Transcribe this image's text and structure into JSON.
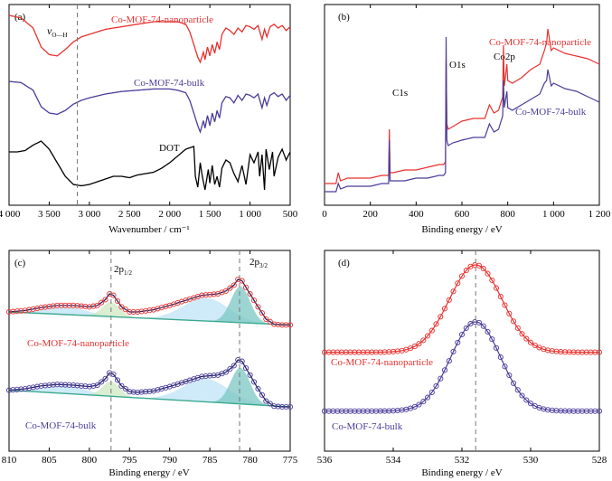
{
  "colors": {
    "nano": "#e8312f",
    "bulk": "#4a3c9a",
    "dot": "#000000",
    "fill_blue": "#bfe3f5",
    "fill_green": "#cfe8c2",
    "fill_teal": "#7cc7c3",
    "guide": "#777777"
  },
  "chart_data": [
    {
      "id": "a",
      "type": "line",
      "panel_label": "(a)",
      "xlabel": "Wavenumber / cm⁻¹",
      "x_ticks": [
        "4 000",
        "3 500",
        "3 000",
        "2 500",
        "2 000",
        "1 500",
        "1 000",
        "500"
      ],
      "xlim": [
        4000,
        500
      ],
      "series": [
        {
          "name": "Co-MOF-74-nanoparticle",
          "x": [
            4000,
            3850,
            3700,
            3600,
            3500,
            3400,
            3300,
            3200,
            3100,
            3000,
            2800,
            2600,
            2400,
            2200,
            2000,
            1900,
            1800,
            1750,
            1700,
            1650,
            1620,
            1580,
            1560,
            1530,
            1500,
            1470,
            1440,
            1410,
            1380,
            1350,
            1300,
            1250,
            1200,
            1150,
            1100,
            1050,
            1000,
            950,
            900,
            850,
            820,
            790,
            750,
            700,
            650,
            600,
            550,
            500
          ],
          "y": [
            95,
            93,
            85,
            70,
            64,
            63,
            68,
            74,
            78,
            80,
            84,
            86,
            88,
            90,
            90,
            90,
            88,
            82,
            72,
            62,
            58,
            66,
            60,
            70,
            63,
            72,
            65,
            74,
            68,
            80,
            85,
            83,
            80,
            85,
            82,
            87,
            86,
            84,
            87,
            76,
            84,
            78,
            86,
            88,
            85,
            87,
            83,
            86
          ]
        },
        {
          "name": "Co-MOF-74-bulk",
          "x": [
            4000,
            3850,
            3700,
            3600,
            3500,
            3400,
            3300,
            3200,
            3100,
            3000,
            2800,
            2600,
            2400,
            2200,
            2000,
            1900,
            1800,
            1750,
            1700,
            1650,
            1620,
            1580,
            1560,
            1530,
            1500,
            1470,
            1440,
            1410,
            1380,
            1350,
            1300,
            1250,
            1200,
            1150,
            1100,
            1050,
            1000,
            950,
            900,
            850,
            820,
            790,
            750,
            700,
            650,
            600,
            550,
            500
          ],
          "y": [
            95,
            94,
            88,
            75,
            70,
            69,
            72,
            77,
            80,
            82,
            85,
            87,
            88,
            89,
            89,
            88,
            86,
            80,
            70,
            60,
            55,
            64,
            58,
            68,
            60,
            70,
            63,
            72,
            66,
            78,
            83,
            82,
            78,
            84,
            80,
            85,
            84,
            82,
            85,
            74,
            82,
            76,
            84,
            86,
            83,
            85,
            80,
            84
          ]
        },
        {
          "name": "DOT",
          "x": [
            4000,
            3900,
            3800,
            3700,
            3600,
            3500,
            3400,
            3300,
            3200,
            3100,
            3000,
            2900,
            2800,
            2700,
            2600,
            2500,
            2400,
            2300,
            2200,
            2100,
            2000,
            1900,
            1800,
            1700,
            1680,
            1650,
            1620,
            1600,
            1560,
            1520,
            1500,
            1470,
            1440,
            1410,
            1380,
            1350,
            1300,
            1250,
            1200,
            1150,
            1100,
            1050,
            1000,
            950,
            900,
            880,
            850,
            820,
            800,
            760,
            720,
            700,
            650,
            600,
            550,
            500
          ],
          "y": [
            88,
            88,
            89,
            93,
            96,
            90,
            80,
            70,
            64,
            63,
            64,
            66,
            68,
            70,
            70,
            69,
            71,
            72,
            73,
            76,
            80,
            85,
            90,
            92,
            70,
            62,
            80,
            72,
            60,
            75,
            65,
            78,
            64,
            70,
            62,
            76,
            82,
            80,
            72,
            66,
            78,
            64,
            86,
            80,
            88,
            70,
            86,
            60,
            90,
            75,
            88,
            70,
            84,
            90,
            82,
            88
          ]
        }
      ],
      "annotations": [
        "ν",
        "O—H",
        "Co-MOF-74-nanoparticle",
        "Co-MOF-74-bulk",
        "DOT"
      ]
    },
    {
      "id": "b",
      "type": "line",
      "panel_label": "(b)",
      "xlabel": "Binding energy / eV",
      "x_ticks": [
        "0",
        "200",
        "400",
        "600",
        "800",
        "1 000",
        "1 200"
      ],
      "xlim": [
        0,
        1200
      ],
      "series": [
        {
          "name": "Co-MOF-74-nanoparticle",
          "x": [
            0,
            50,
            60,
            70,
            100,
            150,
            200,
            250,
            280,
            283,
            286,
            290,
            300,
            350,
            400,
            450,
            500,
            520,
            528,
            531,
            534,
            540,
            560,
            600,
            650,
            700,
            720,
            740,
            760,
            778,
            781,
            785,
            796,
            800,
            820,
            860,
            900,
            940,
            960,
            970,
            975,
            990,
            1000,
            1050,
            1100,
            1150,
            1200
          ],
          "y": [
            8,
            8,
            12,
            9,
            10,
            10,
            10,
            11,
            11,
            28,
            12,
            12,
            12,
            13,
            13,
            14,
            15,
            15,
            16,
            54,
            30,
            28,
            29,
            31,
            32,
            32,
            37,
            34,
            35,
            40,
            59,
            44,
            52,
            46,
            45,
            47,
            50,
            52,
            57,
            60,
            65,
            57,
            58,
            56,
            55,
            54,
            52
          ]
        },
        {
          "name": "Co-MOF-74-bulk",
          "x": [
            0,
            50,
            60,
            70,
            100,
            150,
            200,
            250,
            280,
            283,
            286,
            290,
            300,
            350,
            400,
            450,
            500,
            520,
            528,
            531,
            534,
            540,
            560,
            600,
            650,
            700,
            720,
            740,
            760,
            778,
            781,
            785,
            796,
            800,
            820,
            860,
            900,
            940,
            960,
            970,
            975,
            990,
            1000,
            1050,
            1100,
            1150,
            1200
          ],
          "y": [
            5,
            5,
            8,
            6,
            7,
            7,
            7,
            8,
            8,
            24,
            9,
            9,
            9,
            9,
            10,
            10,
            11,
            11,
            12,
            62,
            24,
            22,
            23,
            24,
            25,
            25,
            30,
            27,
            28,
            33,
            46,
            36,
            42,
            36,
            35,
            37,
            39,
            41,
            45,
            46,
            50,
            44,
            45,
            43,
            42,
            40,
            38
          ]
        }
      ],
      "annotations": [
        "C1s",
        "O1s",
        "Co2p",
        "Co-MOF-74-nanoparticle",
        "Co-MOF-74-bulk"
      ]
    },
    {
      "id": "c",
      "type": "line",
      "panel_label": "(c)",
      "xlabel": "Binding energy / eV",
      "x_ticks": [
        "810",
        "805",
        "800",
        "795",
        "790",
        "785",
        "780",
        "775"
      ],
      "xlim": [
        810,
        775
      ],
      "series": [
        {
          "name": "Co-MOF-74-nanoparticle",
          "x": [
            810,
            808,
            806,
            804,
            802,
            800,
            799,
            798,
            797.5,
            797,
            796,
            795,
            794,
            792,
            790,
            788,
            786,
            784,
            783,
            782,
            781.5,
            781,
            780,
            779,
            778,
            777,
            776,
            775
          ],
          "y": [
            0.55,
            0.57,
            0.61,
            0.64,
            0.64,
            0.62,
            0.64,
            0.72,
            0.8,
            0.78,
            0.62,
            0.55,
            0.55,
            0.58,
            0.64,
            0.71,
            0.78,
            0.8,
            0.84,
            0.92,
            1.0,
            0.98,
            0.8,
            0.62,
            0.45,
            0.38,
            0.37,
            0.37
          ]
        },
        {
          "name": "Co-MOF-74-bulk",
          "x": [
            810,
            808,
            806,
            804,
            802,
            800,
            799,
            798,
            797.5,
            797,
            796,
            795,
            794,
            792,
            790,
            788,
            786,
            784,
            783,
            782,
            781.5,
            781,
            780,
            779,
            778,
            777,
            776,
            775
          ],
          "y": [
            0.58,
            0.6,
            0.64,
            0.66,
            0.65,
            0.63,
            0.65,
            0.74,
            0.82,
            0.8,
            0.64,
            0.56,
            0.55,
            0.57,
            0.63,
            0.7,
            0.77,
            0.79,
            0.83,
            0.92,
            1.0,
            0.98,
            0.79,
            0.6,
            0.43,
            0.36,
            0.35,
            0.35
          ]
        }
      ],
      "annotations": [
        "2p",
        "1/2",
        "2p",
        "3/2",
        "Co-MOF-74-nanoparticle",
        "Co-MOF-74-bulk"
      ]
    },
    {
      "id": "d",
      "type": "line",
      "panel_label": "(d)",
      "xlabel": "Binding energy / eV",
      "x_ticks": [
        "536",
        "534",
        "532",
        "530",
        "528"
      ],
      "xlim": [
        536,
        528
      ],
      "series": [
        {
          "name": "Co-MOF-74-nanoparticle",
          "peak_center": 531.6,
          "fwhm": 1.8,
          "baseline": 0.08,
          "peak_height": 1.0
        },
        {
          "name": "Co-MOF-74-bulk",
          "peak_center": 531.6,
          "fwhm": 1.7,
          "baseline": 0.06,
          "peak_height": 1.0
        }
      ],
      "annotations": [
        "Co-MOF-74-nanoparticle",
        "Co-MOF-74-bulk"
      ]
    }
  ]
}
